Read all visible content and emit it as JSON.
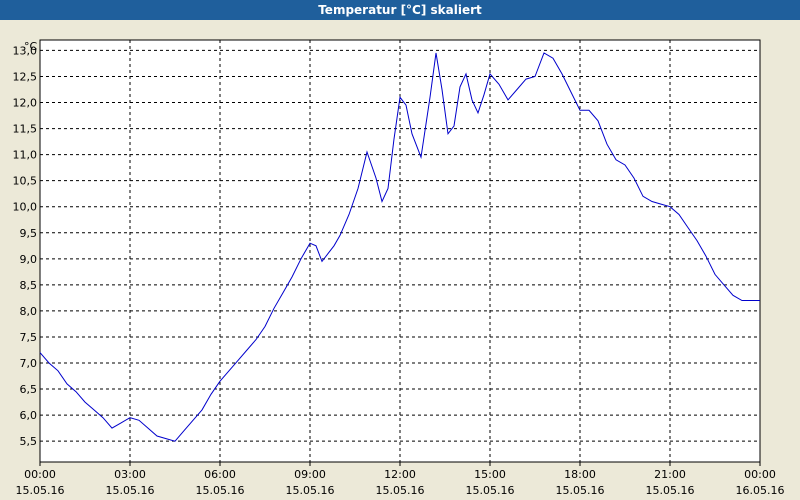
{
  "window": {
    "title": "Temperatur [°C] skaliert"
  },
  "chart_data": {
    "type": "line",
    "title": "Temperatur [°C] skaliert",
    "ylabel": "°C",
    "ylim": [
      5.1,
      13.2
    ],
    "yticks": [
      "13,0",
      "12,5",
      "12,0",
      "11,5",
      "11,0",
      "10,5",
      "10,0",
      "9,5",
      "9,0",
      "8,5",
      "8,0",
      "7,5",
      "7,0",
      "6,5",
      "6,0",
      "5,5"
    ],
    "ytick_values": [
      13.0,
      12.5,
      12.0,
      11.5,
      11.0,
      10.5,
      10.0,
      9.5,
      9.0,
      8.5,
      8.0,
      7.5,
      7.0,
      6.5,
      6.0,
      5.5
    ],
    "xlim_hours": [
      0,
      24
    ],
    "xticks": [
      {
        "time": "00:00",
        "date": "15.05.16"
      },
      {
        "time": "03:00",
        "date": "15.05.16"
      },
      {
        "time": "06:00",
        "date": "15.05.16"
      },
      {
        "time": "09:00",
        "date": "15.05.16"
      },
      {
        "time": "12:00",
        "date": "15.05.16"
      },
      {
        "time": "15:00",
        "date": "15.05.16"
      },
      {
        "time": "18:00",
        "date": "15.05.16"
      },
      {
        "time": "21:00",
        "date": "15.05.16"
      },
      {
        "time": "00:00",
        "date": "16.05.16"
      }
    ],
    "grid": true,
    "line_color": "#0000cc",
    "series": [
      {
        "x_hours": [
          0.0,
          0.3,
          0.6,
          0.9,
          1.2,
          1.5,
          1.8,
          2.1,
          2.4,
          2.7,
          3.0,
          3.3,
          3.6,
          3.9,
          4.2,
          4.5,
          4.8,
          5.1,
          5.4,
          5.7,
          6.0,
          6.3,
          6.6,
          6.9,
          7.2,
          7.5,
          7.8,
          8.1,
          8.4,
          8.7,
          9.0,
          9.2,
          9.4,
          9.6,
          9.8,
          10.0,
          10.3,
          10.6,
          10.9,
          11.2,
          11.4,
          11.6,
          11.8,
          12.0,
          12.2,
          12.4,
          12.7,
          13.0,
          13.2,
          13.4,
          13.6,
          13.8,
          14.0,
          14.2,
          14.4,
          14.6,
          14.8,
          15.0,
          15.3,
          15.6,
          15.9,
          16.2,
          16.5,
          16.8,
          17.1,
          17.4,
          17.7,
          18.0,
          18.3,
          18.6,
          18.9,
          19.2,
          19.5,
          19.8,
          20.1,
          20.4,
          20.7,
          21.0,
          21.3,
          21.6,
          21.9,
          22.2,
          22.5,
          22.8,
          23.1,
          23.4,
          23.7,
          24.0
        ],
        "values": [
          7.2,
          7.0,
          6.85,
          6.6,
          6.45,
          6.25,
          6.1,
          5.95,
          5.75,
          5.85,
          5.95,
          5.9,
          5.75,
          5.6,
          5.55,
          5.5,
          5.7,
          5.9,
          6.1,
          6.4,
          6.65,
          6.85,
          7.05,
          7.25,
          7.45,
          7.7,
          8.05,
          8.35,
          8.65,
          9.0,
          9.3,
          9.25,
          8.95,
          9.1,
          9.25,
          9.45,
          9.85,
          10.35,
          11.05,
          10.55,
          10.1,
          10.35,
          11.3,
          12.1,
          11.95,
          11.4,
          10.95,
          12.1,
          12.95,
          12.25,
          11.4,
          11.55,
          12.3,
          12.55,
          12.05,
          11.8,
          12.15,
          12.55,
          12.35,
          12.05,
          12.25,
          12.45,
          12.5,
          12.95,
          12.85,
          12.55,
          12.2,
          11.85,
          11.85,
          11.65,
          11.2,
          10.9,
          10.8,
          10.55,
          10.2,
          10.1,
          10.05,
          10.0,
          9.85,
          9.6,
          9.35,
          9.05,
          8.7,
          8.5,
          8.3,
          8.2,
          8.2,
          8.2
        ]
      }
    ]
  }
}
